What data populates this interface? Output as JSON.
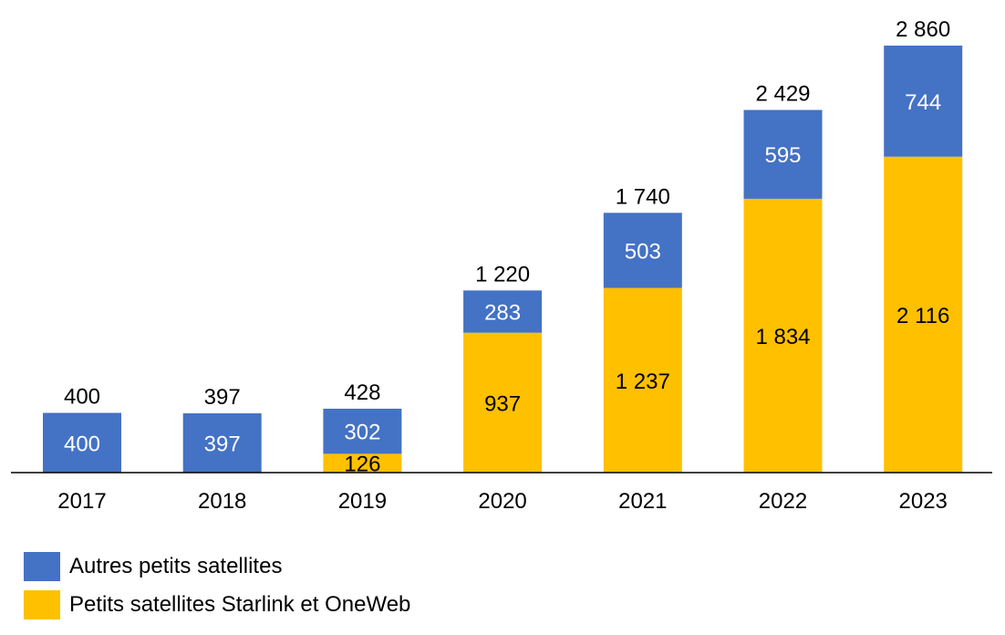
{
  "chart_data": {
    "type": "bar",
    "stacked": true,
    "categories": [
      "2017",
      "2018",
      "2019",
      "2020",
      "2021",
      "2022",
      "2023"
    ],
    "series": [
      {
        "name": "Petits satellites Starlink et OneWeb",
        "color": "#FFC000",
        "values": [
          0,
          0,
          126,
          937,
          1237,
          1834,
          2116
        ],
        "labels": [
          "",
          "",
          "126",
          "937",
          "1 237",
          "1 834",
          "2 116"
        ]
      },
      {
        "name": "Autres petits satellites",
        "color": "#4472C4",
        "values": [
          400,
          397,
          302,
          283,
          503,
          595,
          744
        ],
        "labels": [
          "400",
          "397",
          "302",
          "283",
          "503",
          "595",
          "744"
        ]
      }
    ],
    "totals": [
      400,
      397,
      428,
      1220,
      1740,
      2429,
      2860
    ],
    "total_labels": [
      "400",
      "397",
      "428",
      "1 220",
      "1 740",
      "2 429",
      "2 860"
    ],
    "ylim": [
      0,
      2860
    ],
    "grid": false,
    "legend_placement": "bottom-left",
    "title": "",
    "xlabel": "",
    "ylabel": ""
  },
  "legend": {
    "items": [
      {
        "label": "Autres petits satellites",
        "color": "#4472C4"
      },
      {
        "label": "Petits satellites Starlink et OneWeb",
        "color": "#FFC000"
      }
    ]
  }
}
